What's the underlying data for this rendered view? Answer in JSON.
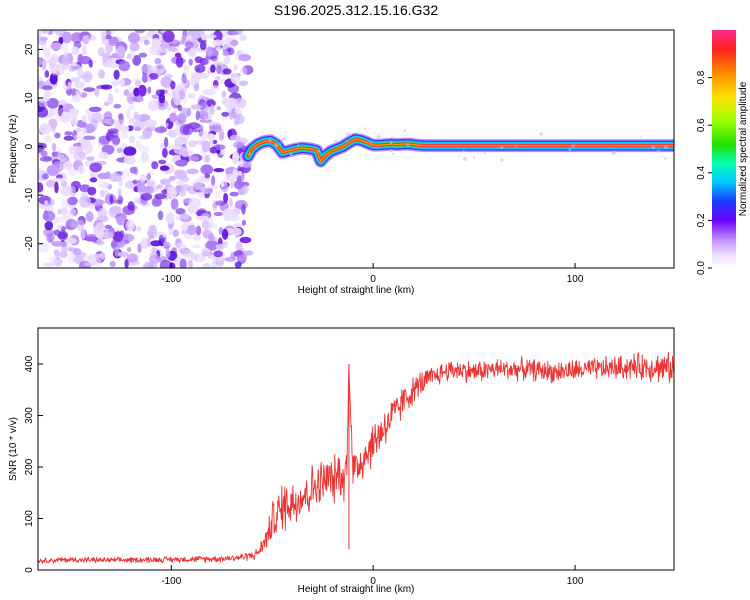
{
  "title": "S196.2025.312.15.16.G32",
  "chart_data": [
    {
      "type": "heatmap",
      "title": "S196.2025.312.15.16.G32",
      "xlabel": "Height of straight line (km)",
      "ylabel": "Frequency (Hz)",
      "xlim": [
        -166,
        149
      ],
      "ylim": [
        -25,
        24
      ],
      "xticks": [
        -100,
        0,
        100
      ],
      "yticks": [
        -20,
        -10,
        0,
        10,
        20
      ],
      "noise_region_x": [
        -166,
        -62
      ],
      "signal_trace": {
        "x": [
          -62,
          -60,
          -57,
          -54,
          -51,
          -48,
          -45,
          -41,
          -38,
          -35,
          -31,
          -28,
          -26,
          -24,
          -21,
          -18,
          -15,
          -12,
          -9,
          -6,
          -3,
          0,
          3,
          6,
          9,
          12,
          15,
          18,
          22,
          26,
          35,
          50,
          75,
          100,
          125,
          149
        ],
        "y": [
          -2,
          -0.5,
          0.5,
          1,
          1.2,
          0.5,
          -1.2,
          -0.8,
          -0.5,
          -0.3,
          -0.5,
          -0.8,
          -3,
          -2,
          -1,
          -0.5,
          0,
          0.8,
          1.5,
          1.3,
          0.8,
          0.3,
          0.3,
          0.4,
          0.5,
          0.4,
          0.5,
          0.5,
          0.3,
          0.2,
          0.2,
          0.2,
          0.2,
          0.2,
          0.2,
          0.2
        ]
      },
      "colorbar": {
        "label": "Normalized spectral amplitude",
        "range": [
          0,
          1
        ],
        "ticks": [
          0.0,
          0.2,
          0.4,
          0.6,
          0.8
        ],
        "tick_labels": [
          "0.0",
          "0.2",
          "0.4",
          "0.6",
          "0.8"
        ]
      }
    },
    {
      "type": "line",
      "xlabel": "Height of straight line (km)",
      "ylabel": "SNR (10 * v/v)",
      "xlim": [
        -166,
        149
      ],
      "ylim": [
        0,
        470
      ],
      "xticks": [
        -100,
        0,
        100
      ],
      "yticks": [
        0,
        100,
        200,
        300,
        400
      ],
      "series": [
        {
          "name": "SNR",
          "color": "#ee3333",
          "x": [
            -166,
            -150,
            -130,
            -110,
            -90,
            -75,
            -65,
            -58,
            -55,
            -52,
            -50,
            -47,
            -45,
            -42,
            -40,
            -37,
            -35,
            -32,
            -30,
            -27,
            -25,
            -22,
            -20,
            -17,
            -15,
            -13,
            -12,
            -10,
            -7,
            -5,
            -2,
            0,
            3,
            5,
            8,
            10,
            13,
            15,
            18,
            20,
            23,
            25,
            30,
            35,
            40,
            50,
            60,
            75,
            90,
            110,
            130,
            140,
            149
          ],
          "y": [
            18,
            20,
            19,
            20,
            21,
            22,
            25,
            30,
            45,
            70,
            95,
            110,
            120,
            135,
            130,
            140,
            145,
            150,
            160,
            165,
            170,
            180,
            170,
            190,
            175,
            200,
            400,
            190,
            205,
            220,
            235,
            245,
            265,
            275,
            290,
            300,
            315,
            330,
            340,
            350,
            360,
            365,
            375,
            385,
            390,
            385,
            390,
            390,
            385,
            390,
            395,
            395,
            390
          ],
          "noise_amplitude": [
            6,
            7,
            6,
            7,
            7,
            8,
            9,
            12,
            20,
            30,
            45,
            55,
            60,
            60,
            60,
            55,
            55,
            55,
            55,
            55,
            55,
            50,
            55,
            50,
            55,
            50,
            10,
            55,
            55,
            55,
            50,
            50,
            50,
            50,
            45,
            45,
            40,
            35,
            35,
            30,
            30,
            30,
            25,
            25,
            25,
            25,
            25,
            25,
            25,
            25,
            30,
            35,
            35
          ]
        }
      ]
    }
  ]
}
